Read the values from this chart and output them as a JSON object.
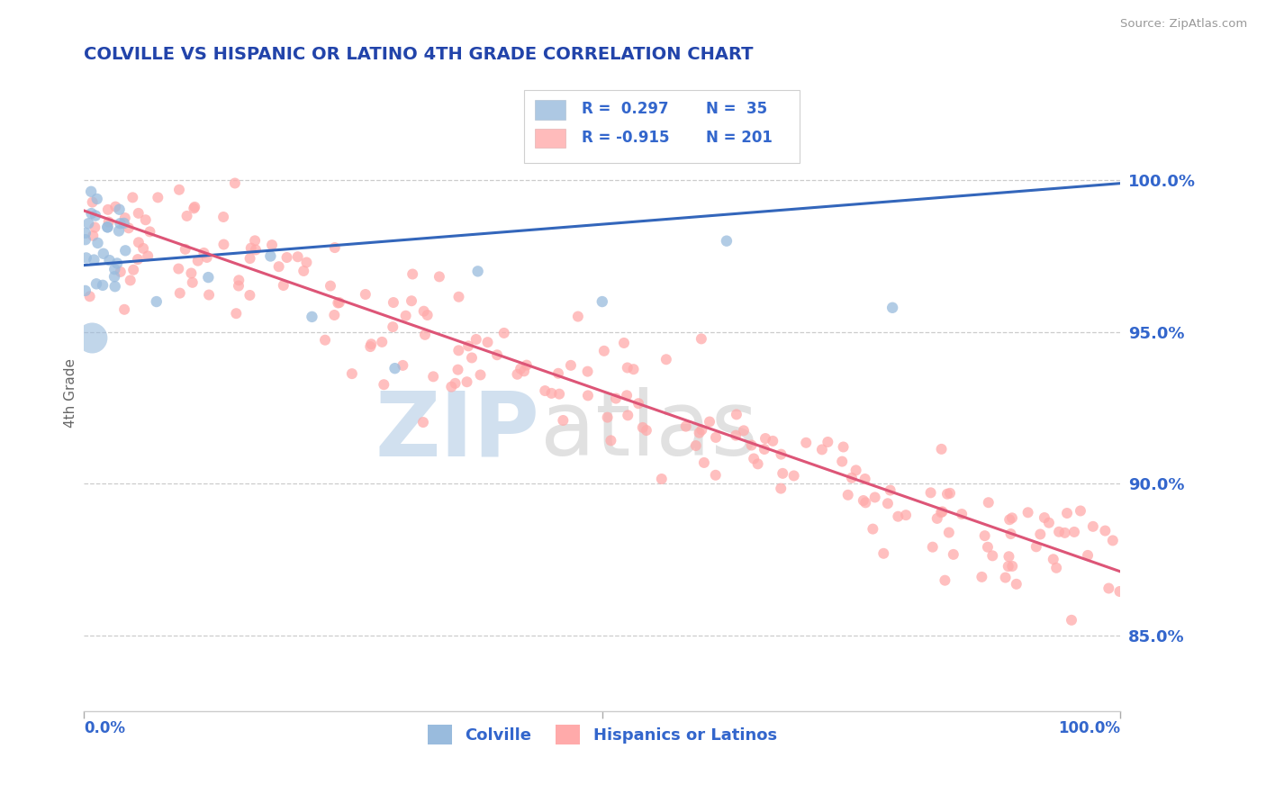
{
  "title": "COLVILLE VS HISPANIC OR LATINO 4TH GRADE CORRELATION CHART",
  "source_text": "Source: ZipAtlas.com",
  "ylabel": "4th Grade",
  "legend_label1": "Colville",
  "legend_label2": "Hispanics or Latinos",
  "r1": 0.297,
  "n1": 35,
  "r2": -0.915,
  "n2": 201,
  "blue_color": "#99BBDD",
  "pink_color": "#FFAAAA",
  "blue_line_color": "#3366BB",
  "pink_line_color": "#DD5577",
  "right_ytick_labels": [
    "85.0%",
    "90.0%",
    "95.0%",
    "100.0%"
  ],
  "right_ytick_values": [
    0.85,
    0.9,
    0.95,
    1.0
  ],
  "ymin": 0.825,
  "ymax": 1.035,
  "xmin": 0.0,
  "xmax": 1.0,
  "watermark_zip": "ZIP",
  "watermark_atlas": "atlas",
  "watermark_color_zip": "#99BBDD",
  "watermark_color_atlas": "#AAAAAA",
  "title_color": "#2244AA",
  "tick_color": "#3366CC",
  "background_color": "#FFFFFF",
  "grid_color": "#CCCCCC",
  "blue_line_start_y": 0.972,
  "blue_line_end_y": 0.999,
  "pink_line_start_y": 0.99,
  "pink_line_end_y": 0.871
}
